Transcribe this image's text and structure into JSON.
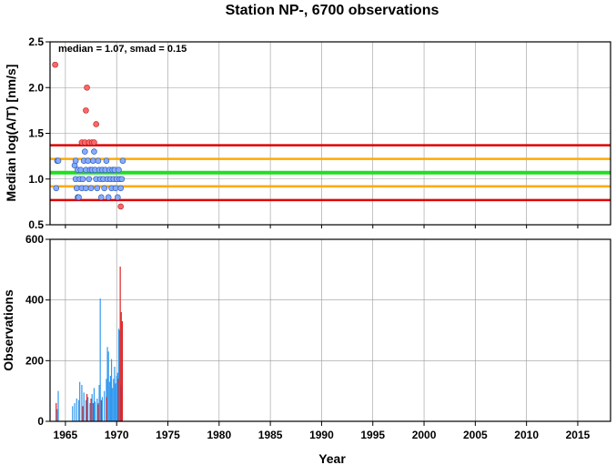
{
  "chart_data": {
    "title": "Station NP-, 6700 observations",
    "xlabel": "Year",
    "x_ticks": [
      1965,
      1970,
      1975,
      1980,
      1985,
      1990,
      1995,
      2000,
      2005,
      2010,
      2015
    ],
    "xlim": [
      1963.5,
      2018.2
    ],
    "grid": true,
    "colors": {
      "median_line": "#22dd22",
      "smad_line": "#ffaa00",
      "outer_line": "#dd0000",
      "point_normal": "#88aaff",
      "point_outlier": "#ff6666",
      "bar_normal": "#3399ee",
      "bar_outlier": "#dd2222"
    },
    "panels": [
      {
        "type": "scatter",
        "ylabel": "Median log(A/T) [nm/s]",
        "ylim": [
          0.5,
          2.5
        ],
        "y_ticks": [
          "0.5",
          "1.0",
          "1.5",
          "2.0",
          "2.5"
        ],
        "annotation": "median = 1.07, smad = 0.15",
        "hlines": [
          {
            "role": "median",
            "y": 1.07
          },
          {
            "role": "smad",
            "y": 1.22
          },
          {
            "role": "smad",
            "y": 0.92
          },
          {
            "role": "outer",
            "y": 1.37
          },
          {
            "role": "outer",
            "y": 0.77
          }
        ],
        "points_normal": [
          [
            1964.1,
            0.9
          ],
          [
            1964.2,
            1.2
          ],
          [
            1964.3,
            1.2
          ],
          [
            1965.9,
            1.15
          ],
          [
            1966.0,
            1.2
          ],
          [
            1966.0,
            1.0
          ],
          [
            1966.1,
            0.9
          ],
          [
            1966.2,
            1.1
          ],
          [
            1966.2,
            0.8
          ],
          [
            1966.3,
            0.8
          ],
          [
            1966.4,
            1.0
          ],
          [
            1966.5,
            1.1
          ],
          [
            1966.6,
            0.9
          ],
          [
            1966.7,
            1.0
          ],
          [
            1966.8,
            1.2
          ],
          [
            1966.9,
            1.3
          ],
          [
            1967.0,
            1.1
          ],
          [
            1967.0,
            0.9
          ],
          [
            1967.2,
            1.2
          ],
          [
            1967.3,
            1.0
          ],
          [
            1967.4,
            1.1
          ],
          [
            1967.5,
            0.9
          ],
          [
            1967.6,
            1.1
          ],
          [
            1967.7,
            1.2
          ],
          [
            1967.8,
            1.3
          ],
          [
            1967.9,
            1.1
          ],
          [
            1968.0,
            1.0
          ],
          [
            1968.1,
            0.9
          ],
          [
            1968.2,
            1.2
          ],
          [
            1968.3,
            1.1
          ],
          [
            1968.4,
            1.0
          ],
          [
            1968.5,
            0.8
          ],
          [
            1968.6,
            1.1
          ],
          [
            1968.7,
            1.0
          ],
          [
            1968.8,
            0.9
          ],
          [
            1968.9,
            1.1
          ],
          [
            1969.0,
            1.2
          ],
          [
            1969.1,
            1.0
          ],
          [
            1969.2,
            0.8
          ],
          [
            1969.3,
            1.1
          ],
          [
            1969.4,
            1.0
          ],
          [
            1969.5,
            0.9
          ],
          [
            1969.6,
            1.1
          ],
          [
            1969.7,
            1.0
          ],
          [
            1969.8,
            1.1
          ],
          [
            1969.9,
            0.9
          ],
          [
            1970.0,
            1.0
          ],
          [
            1970.1,
            0.8
          ],
          [
            1970.2,
            1.1
          ],
          [
            1970.3,
            1.0
          ],
          [
            1970.4,
            0.9
          ],
          [
            1970.5,
            1.0
          ],
          [
            1970.6,
            1.2
          ]
        ],
        "points_outlier": [
          [
            1964.0,
            2.25
          ],
          [
            1966.6,
            1.4
          ],
          [
            1966.9,
            1.4
          ],
          [
            1967.1,
            2.0
          ],
          [
            1967.0,
            1.75
          ],
          [
            1967.3,
            1.4
          ],
          [
            1967.6,
            1.4
          ],
          [
            1967.8,
            1.4
          ],
          [
            1968.0,
            1.6
          ],
          [
            1970.4,
            0.7
          ]
        ]
      },
      {
        "type": "bar",
        "ylabel": "Observations",
        "ylim": [
          0,
          600
        ],
        "y_ticks": [
          "0",
          "200",
          "400",
          "600"
        ],
        "bars_normal": [
          [
            1964.3,
            100
          ],
          [
            1964.2,
            40
          ],
          [
            1965.7,
            50
          ],
          [
            1965.9,
            60
          ],
          [
            1966.1,
            75
          ],
          [
            1966.3,
            70
          ],
          [
            1966.4,
            130
          ],
          [
            1966.6,
            120
          ],
          [
            1966.8,
            95
          ],
          [
            1967.0,
            70
          ],
          [
            1967.2,
            80
          ],
          [
            1967.4,
            60
          ],
          [
            1967.6,
            90
          ],
          [
            1967.8,
            110
          ],
          [
            1967.9,
            65
          ],
          [
            1968.1,
            75
          ],
          [
            1968.2,
            60
          ],
          [
            1968.3,
            120
          ],
          [
            1968.4,
            405
          ],
          [
            1968.6,
            80
          ],
          [
            1968.8,
            100
          ],
          [
            1969.0,
            140
          ],
          [
            1969.1,
            245
          ],
          [
            1969.2,
            230
          ],
          [
            1969.3,
            130
          ],
          [
            1969.4,
            150
          ],
          [
            1969.5,
            205
          ],
          [
            1969.6,
            110
          ],
          [
            1969.7,
            140
          ],
          [
            1969.8,
            180
          ],
          [
            1969.9,
            125
          ],
          [
            1970.0,
            150
          ],
          [
            1970.1,
            160
          ],
          [
            1970.2,
            305
          ],
          [
            1970.3,
            300
          ],
          [
            1970.4,
            120
          ],
          [
            1970.5,
            110
          ]
        ],
        "bars_outlier": [
          [
            1964.1,
            60
          ],
          [
            1966.7,
            50
          ],
          [
            1967.1,
            90
          ],
          [
            1967.5,
            75
          ],
          [
            1967.7,
            60
          ],
          [
            1968.2,
            55
          ],
          [
            1968.5,
            70
          ],
          [
            1969.0,
            80
          ],
          [
            1970.15,
            140
          ],
          [
            1970.35,
            510
          ],
          [
            1970.45,
            360
          ],
          [
            1970.55,
            330
          ]
        ]
      }
    ]
  }
}
